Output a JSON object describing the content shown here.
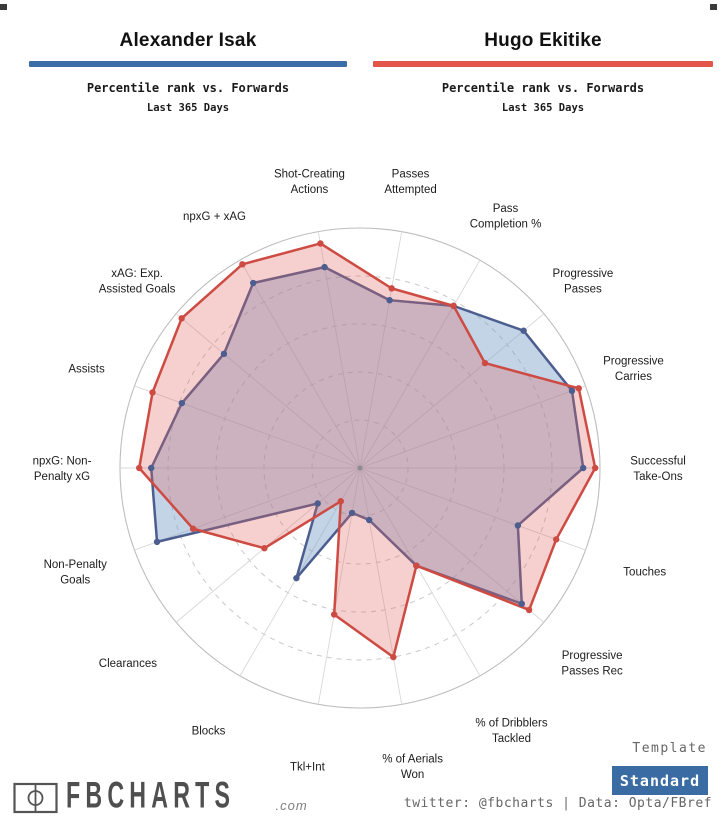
{
  "header": {
    "players": [
      {
        "name": "Alexander Isak",
        "accent": "#3d6ca6",
        "subtitle": "Percentile rank vs. Forwards",
        "period": "Last 365 Days"
      },
      {
        "name": "Hugo Ekitike",
        "accent": "#e2564a",
        "subtitle": "Percentile rank vs. Forwards",
        "period": "Last 365 Days"
      }
    ]
  },
  "chart_data": {
    "type": "radar",
    "title": "Percentile rank vs. Forwards, Last 365 Days",
    "r_axis": {
      "min": 0,
      "max": 100,
      "rings": [
        20,
        40,
        60,
        80,
        100
      ],
      "grid": "dashed"
    },
    "categories": [
      "Passes\nAttempted",
      "Pass\nCompletion %",
      "Progressive\nPasses",
      "Progressive\nCarries",
      "Successful\nTake-Ons",
      "Touches",
      "Progressive\nPasses Rec",
      "% of Dribblers\nTackled",
      "% of Aerials\nWon",
      "Tkl+Int",
      "Blocks",
      "Clearances",
      "Non-Penalty\nGoals",
      "npxG: Non-\nPenalty xG",
      "Assists",
      "xAG: Exp.\nAssisted Goals",
      "npxG + xAG",
      "Shot-Creating\nActions"
    ],
    "angles_deg": [
      80,
      60,
      40,
      20,
      0,
      -20,
      -40,
      -60,
      -80,
      -100,
      -120,
      -140,
      -160,
      180,
      160,
      140,
      120,
      100
    ],
    "series": [
      {
        "name": "Alexander Isak",
        "stroke": "#4c5d8f",
        "fill": "rgba(122,160,202,0.45)",
        "values": [
          71,
          78,
          89,
          94,
          93,
          70,
          88,
          47,
          22,
          19,
          53,
          23,
          90,
          87,
          79,
          74,
          89,
          85
        ]
      },
      {
        "name": "Hugo Ekitike",
        "stroke": "#cd4b42",
        "fill": "rgba(226,100,95,0.30)",
        "values": [
          76,
          78,
          68,
          97,
          98,
          87,
          92,
          47,
          80,
          62,
          16,
          52,
          74,
          92,
          92,
          97,
          98,
          95
        ]
      }
    ],
    "legend_position": "none"
  },
  "footer": {
    "logo": {
      "brand": "FBCHARTS",
      "tld": ".com",
      "icon": "football-pitch-icon"
    },
    "template_label": "Template",
    "template_value": "Standard",
    "button_color": "#3a6ba3",
    "credit": "twitter: @fbcharts | Data: Opta/FBref"
  }
}
